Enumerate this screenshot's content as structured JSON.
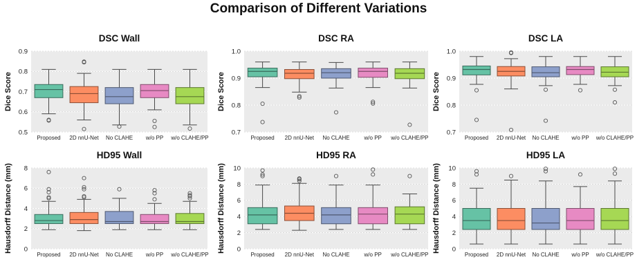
{
  "title": "Comparison of Different Variations",
  "palette": [
    "#66c2a5",
    "#fc8d62",
    "#8da0cb",
    "#e78ac3",
    "#a6d854"
  ],
  "chart_data": [
    {
      "type": "box",
      "title": "DSC Wall",
      "ylabel": "Dice Score",
      "ylim": [
        0.5,
        0.9
      ],
      "yticks": [
        "0.5",
        "0.6",
        "0.7",
        "0.8",
        "0.9"
      ],
      "grid": true,
      "categories": [
        "Proposed",
        "2D nnU-Net",
        "No CLAHE",
        "w/o PP",
        "w/o CLAHE/PP"
      ],
      "boxes": [
        {
          "whislo": 0.59,
          "q1": 0.67,
          "med": 0.71,
          "q3": 0.735,
          "whishi": 0.81,
          "fliers": [
            0.557,
            0.56
          ]
        },
        {
          "whislo": 0.56,
          "q1": 0.645,
          "med": 0.69,
          "q3": 0.725,
          "whishi": 0.79,
          "fliers": [
            0.515,
            0.845,
            0.848
          ]
        },
        {
          "whislo": 0.535,
          "q1": 0.64,
          "med": 0.675,
          "q3": 0.72,
          "whishi": 0.81,
          "fliers": [
            0.527
          ]
        },
        {
          "whislo": 0.61,
          "q1": 0.67,
          "med": 0.705,
          "q3": 0.735,
          "whishi": 0.81,
          "fliers": [
            0.525,
            0.555
          ]
        },
        {
          "whislo": 0.535,
          "q1": 0.64,
          "med": 0.675,
          "q3": 0.72,
          "whishi": 0.81,
          "fliers": [
            0.517
          ]
        }
      ]
    },
    {
      "type": "box",
      "title": "DSC RA",
      "ylabel": "Dice Score",
      "ylim": [
        0.7,
        1.0
      ],
      "yticks": [
        "0.7",
        "0.8",
        "0.9",
        "1.0"
      ],
      "grid": true,
      "categories": [
        "Proposed",
        "2D nnU-Net",
        "No CLAHE",
        "w/o PP",
        "w/o CLAHE/PP"
      ],
      "boxes": [
        {
          "whislo": 0.865,
          "q1": 0.905,
          "med": 0.925,
          "q3": 0.937,
          "whishi": 0.96,
          "fliers": [
            0.737,
            0.805
          ]
        },
        {
          "whislo": 0.848,
          "q1": 0.898,
          "med": 0.918,
          "q3": 0.932,
          "whishi": 0.96,
          "fliers": [
            0.828,
            0.833
          ]
        },
        {
          "whislo": 0.863,
          "q1": 0.9,
          "med": 0.92,
          "q3": 0.935,
          "whishi": 0.958,
          "fliers": [
            0.773
          ]
        },
        {
          "whislo": 0.865,
          "q1": 0.903,
          "med": 0.925,
          "q3": 0.937,
          "whishi": 0.96,
          "fliers": [
            0.806,
            0.812
          ]
        },
        {
          "whislo": 0.863,
          "q1": 0.898,
          "med": 0.918,
          "q3": 0.935,
          "whishi": 0.96,
          "fliers": [
            0.727
          ]
        }
      ]
    },
    {
      "type": "box",
      "title": "DSC LA",
      "ylabel": "Dice Score",
      "ylim": [
        0.7,
        1.0
      ],
      "yticks": [
        "0.7",
        "0.8",
        "0.9",
        "1.0"
      ],
      "grid": true,
      "categories": [
        "Proposed",
        "2D nnU-Net",
        "No CLAHE",
        "w/o PP",
        "w/o CLAHE/PP"
      ],
      "boxes": [
        {
          "whislo": 0.877,
          "q1": 0.912,
          "med": 0.932,
          "q3": 0.945,
          "whishi": 0.98,
          "fliers": [
            0.745,
            0.855
          ]
        },
        {
          "whislo": 0.86,
          "q1": 0.908,
          "med": 0.925,
          "q3": 0.943,
          "whishi": 0.972,
          "fliers": [
            0.708,
            0.993,
            0.995
          ]
        },
        {
          "whislo": 0.872,
          "q1": 0.905,
          "med": 0.92,
          "q3": 0.942,
          "whishi": 0.98,
          "fliers": [
            0.742,
            0.857
          ]
        },
        {
          "whislo": 0.877,
          "q1": 0.913,
          "med": 0.932,
          "q3": 0.943,
          "whishi": 0.98,
          "fliers": [
            0.855
          ]
        },
        {
          "whislo": 0.872,
          "q1": 0.905,
          "med": 0.922,
          "q3": 0.942,
          "whishi": 0.98,
          "fliers": [
            0.81,
            0.857
          ]
        }
      ]
    },
    {
      "type": "box",
      "title": "HD95 Wall",
      "ylabel": "Hausdorff Distance (mm)",
      "ylim": [
        0,
        8
      ],
      "yticks": [
        "0",
        "2",
        "4",
        "6",
        "8"
      ],
      "grid": true,
      "categories": [
        "Proposed",
        "2D nnU-Net",
        "No CLAHE",
        "w/o PP",
        "w/o CLAHE/PP"
      ],
      "boxes": [
        {
          "whislo": 1.9,
          "q1": 2.5,
          "med": 2.8,
          "q3": 3.4,
          "whishi": 4.7,
          "fliers": [
            5.0,
            5.1,
            5.6,
            5.9,
            7.6
          ]
        },
        {
          "whislo": 1.8,
          "q1": 2.5,
          "med": 2.9,
          "q3": 3.6,
          "whishi": 4.9,
          "fliers": [
            5.1,
            5.2,
            5.9,
            6.1,
            7.0
          ]
        },
        {
          "whislo": 1.9,
          "q1": 2.5,
          "med": 2.7,
          "q3": 3.7,
          "whishi": 5.0,
          "fliers": [
            5.9
          ]
        },
        {
          "whislo": 1.9,
          "q1": 2.5,
          "med": 2.7,
          "q3": 3.4,
          "whishi": 4.5,
          "fliers": [
            4.9,
            5.5,
            5.8
          ]
        },
        {
          "whislo": 1.9,
          "q1": 2.5,
          "med": 2.7,
          "q3": 3.5,
          "whishi": 4.7,
          "fliers": [
            5.0,
            5.2,
            5.3,
            5.5
          ]
        }
      ]
    },
    {
      "type": "box",
      "title": "HD95 RA",
      "ylabel": "Hausdorff Distance (mm)",
      "ylim": [
        0,
        10
      ],
      "yticks": [
        "0",
        "2",
        "4",
        "6",
        "8",
        "10"
      ],
      "grid": true,
      "categories": [
        "Proposed",
        "2D nnU-Net",
        "No CLAHE",
        "w/o PP",
        "w/o CLAHE/PP"
      ],
      "boxes": [
        {
          "whislo": 2.4,
          "q1": 3.1,
          "med": 4.2,
          "q3": 5.1,
          "whishi": 7.9,
          "fliers": [
            9.0,
            9.2,
            9.7
          ]
        },
        {
          "whislo": 2.3,
          "q1": 3.5,
          "med": 4.4,
          "q3": 5.3,
          "whishi": 8.1,
          "fliers": [
            8.4,
            8.6,
            8.7
          ]
        },
        {
          "whislo": 2.4,
          "q1": 3.1,
          "med": 4.2,
          "q3": 5.1,
          "whishi": 7.9,
          "fliers": [
            9.0
          ]
        },
        {
          "whislo": 2.4,
          "q1": 3.1,
          "med": 4.3,
          "q3": 5.1,
          "whishi": 7.9,
          "fliers": [
            9.2,
            9.8
          ]
        },
        {
          "whislo": 2.4,
          "q1": 3.1,
          "med": 4.3,
          "q3": 5.2,
          "whishi": 6.8,
          "fliers": [
            9.0
          ]
        }
      ]
    },
    {
      "type": "box",
      "title": "HD95 LA",
      "ylabel": "Hausdorff Distance (mm)",
      "ylim": [
        0,
        10
      ],
      "yticks": [
        "0",
        "2",
        "4",
        "6",
        "8",
        "10"
      ],
      "grid": true,
      "categories": [
        "Proposed",
        "2D nnU-Net",
        "No CLAHE",
        "w/o PP",
        "w/o CLAHE/PP"
      ],
      "boxes": [
        {
          "whislo": 0.6,
          "q1": 2.4,
          "med": 3.5,
          "q3": 5.0,
          "whishi": 7.5,
          "fliers": [
            9.2,
            9.6
          ]
        },
        {
          "whislo": 0.6,
          "q1": 2.4,
          "med": 3.5,
          "q3": 5.0,
          "whishi": 8.5,
          "fliers": [
            9.0
          ]
        },
        {
          "whislo": 0.6,
          "q1": 2.4,
          "med": 3.2,
          "q3": 5.0,
          "whishi": 8.4,
          "fliers": [
            9.6,
            9.9
          ]
        },
        {
          "whislo": 0.6,
          "q1": 2.4,
          "med": 3.5,
          "q3": 5.0,
          "whishi": 7.7,
          "fliers": [
            9.2
          ]
        },
        {
          "whislo": 0.6,
          "q1": 2.4,
          "med": 3.5,
          "q3": 5.0,
          "whishi": 8.4,
          "fliers": [
            9.3,
            9.9
          ]
        }
      ]
    }
  ]
}
